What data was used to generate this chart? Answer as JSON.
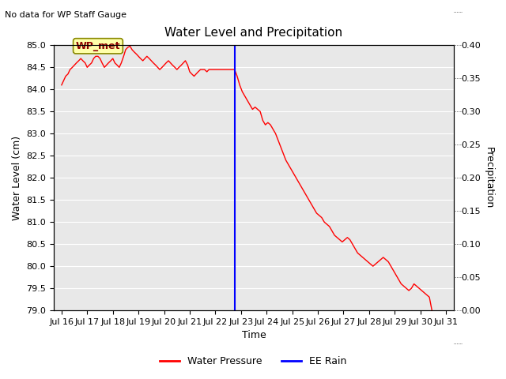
{
  "title": "Water Level and Precipitation",
  "subtitle": "No data for WP Staff Gauge",
  "xlabel": "Time",
  "ylabel_left": "Water Level (cm)",
  "ylabel_right": "Precipitation",
  "ylim_left": [
    79.0,
    85.0
  ],
  "ylim_right": [
    0.0,
    0.4
  ],
  "bg_color": "#e8e8e8",
  "fig_color": "#ffffff",
  "legend_label_red": "Water Pressure",
  "legend_label_blue": "EE Rain",
  "annotation_label": "WP_met",
  "blue_vline_x": 6.75,
  "xtick_labels": [
    "Jul 16",
    "Jul 17",
    "Jul 18",
    "Jul 19",
    "Jul 20",
    "Jul 21",
    "Jul 22",
    "Jul 23",
    "Jul 24",
    "Jul 25",
    "Jul 26",
    "Jul 27",
    "Jul 28",
    "Jul 29",
    "Jul 30",
    "Jul 31"
  ],
  "water_pressure_x": [
    0.0,
    0.08,
    0.16,
    0.25,
    0.33,
    0.42,
    0.5,
    0.58,
    0.67,
    0.75,
    0.83,
    0.92,
    1.0,
    1.08,
    1.17,
    1.25,
    1.33,
    1.42,
    1.5,
    1.58,
    1.67,
    1.75,
    1.83,
    1.92,
    2.0,
    2.08,
    2.17,
    2.25,
    2.33,
    2.42,
    2.5,
    2.58,
    2.67,
    2.75,
    2.83,
    2.92,
    3.0,
    3.08,
    3.17,
    3.25,
    3.33,
    3.42,
    3.5,
    3.58,
    3.67,
    3.75,
    3.83,
    3.92,
    4.0,
    4.08,
    4.17,
    4.25,
    4.33,
    4.42,
    4.5,
    4.58,
    4.67,
    4.75,
    4.83,
    4.92,
    5.0,
    5.08,
    5.17,
    5.25,
    5.33,
    5.42,
    5.5,
    5.58,
    5.67,
    5.75,
    6.75,
    6.85,
    6.95,
    7.05,
    7.15,
    7.25,
    7.35,
    7.45,
    7.55,
    7.65,
    7.75,
    7.85,
    7.95,
    8.05,
    8.15,
    8.25,
    8.35,
    8.45,
    8.55,
    8.65,
    8.75,
    8.85,
    8.95,
    9.05,
    9.15,
    9.25,
    9.35,
    9.45,
    9.55,
    9.65,
    9.75,
    9.85,
    9.95,
    10.05,
    10.15,
    10.25,
    10.35,
    10.45,
    10.55,
    10.65,
    10.75,
    10.85,
    10.95,
    11.05,
    11.15,
    11.25,
    11.35,
    11.45,
    11.55,
    11.65,
    11.75,
    11.85,
    11.95,
    12.05,
    12.15,
    12.25,
    12.35,
    12.45,
    12.55,
    12.65,
    12.75,
    12.85,
    12.95,
    13.05,
    13.15,
    13.25,
    13.35,
    13.45,
    13.55,
    13.65,
    13.75,
    13.85,
    13.95,
    14.05,
    14.15,
    14.25,
    14.35,
    14.45
  ],
  "water_pressure_y": [
    84.1,
    84.2,
    84.3,
    84.35,
    84.45,
    84.5,
    84.55,
    84.6,
    84.65,
    84.7,
    84.65,
    84.6,
    84.5,
    84.55,
    84.6,
    84.7,
    84.75,
    84.75,
    84.7,
    84.6,
    84.5,
    84.55,
    84.6,
    84.65,
    84.7,
    84.6,
    84.55,
    84.5,
    84.6,
    84.75,
    84.9,
    84.95,
    84.98,
    84.9,
    84.85,
    84.8,
    84.75,
    84.7,
    84.65,
    84.7,
    84.75,
    84.7,
    84.65,
    84.6,
    84.55,
    84.5,
    84.45,
    84.5,
    84.55,
    84.6,
    84.65,
    84.6,
    84.55,
    84.5,
    84.45,
    84.5,
    84.55,
    84.6,
    84.65,
    84.55,
    84.4,
    84.35,
    84.3,
    84.35,
    84.4,
    84.45,
    84.45,
    84.45,
    84.4,
    84.45,
    84.45,
    84.3,
    84.1,
    83.95,
    83.85,
    83.75,
    83.65,
    83.55,
    83.6,
    83.55,
    83.5,
    83.3,
    83.2,
    83.25,
    83.2,
    83.1,
    83.0,
    82.85,
    82.7,
    82.55,
    82.4,
    82.3,
    82.2,
    82.1,
    82.0,
    81.9,
    81.8,
    81.7,
    81.6,
    81.5,
    81.4,
    81.3,
    81.2,
    81.15,
    81.1,
    81.0,
    80.95,
    80.9,
    80.8,
    80.7,
    80.65,
    80.6,
    80.55,
    80.6,
    80.65,
    80.6,
    80.5,
    80.4,
    80.3,
    80.25,
    80.2,
    80.15,
    80.1,
    80.05,
    80.0,
    80.05,
    80.1,
    80.15,
    80.2,
    80.15,
    80.1,
    80.0,
    79.9,
    79.8,
    79.7,
    79.6,
    79.55,
    79.5,
    79.45,
    79.5,
    79.6,
    79.55,
    79.5,
    79.45,
    79.4,
    79.35,
    79.3,
    79.0
  ]
}
